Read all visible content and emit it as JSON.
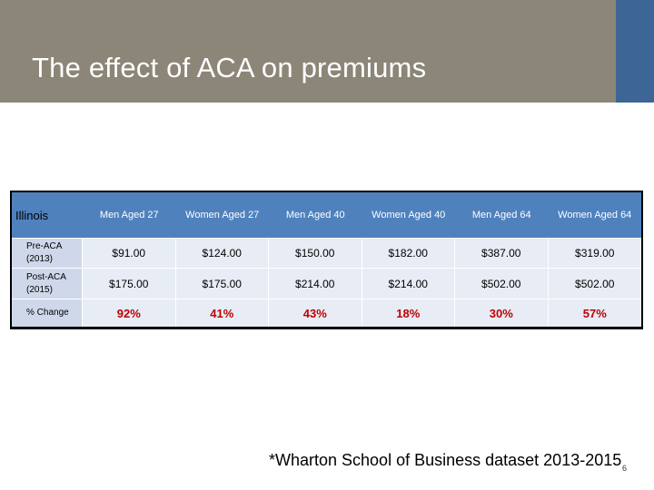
{
  "slide": {
    "title": "The effect of ACA on premiums",
    "footnote": "*Wharton School of Business dataset 2013-2015",
    "slide_number": "6",
    "colors": {
      "header": "#8b8677",
      "accent": "#3d6696",
      "table_header": "#4f81bd",
      "percent": "#c00000"
    }
  },
  "table": {
    "corner": "Illinois",
    "columns": [
      "Men Aged 27",
      "Women Aged 27",
      "Men Aged 40",
      "Women Aged 40",
      "Men Aged 64",
      "Women Aged 64"
    ],
    "rows": [
      {
        "label": "Pre-ACA (2013)",
        "values": [
          "$91.00",
          "$124.00",
          "$150.00",
          "$182.00",
          "$387.00",
          "$319.00"
        ]
      },
      {
        "label": "Post-ACA (2015)",
        "values": [
          "$175.00",
          "$175.00",
          "$214.00",
          "$214.00",
          "$502.00",
          "$502.00"
        ]
      },
      {
        "label": "% Change",
        "values": [
          "92%",
          "41%",
          "43%",
          "18%",
          "30%",
          "57%"
        ]
      }
    ]
  }
}
